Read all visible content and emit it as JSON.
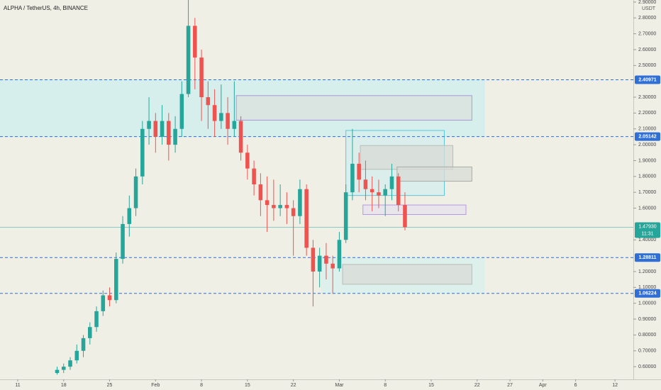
{
  "chart_data": {
    "type": "candlestick",
    "title": "ALPHA / TetherUS, 4h, BINANCE",
    "currency": "USDT",
    "up_color": "#26a69a",
    "down_color": "#ef5350",
    "x": [
      17,
      18,
      19,
      20,
      21,
      22,
      23,
      24,
      25,
      26,
      27,
      28,
      29,
      30,
      31,
      32,
      33,
      34,
      35,
      36,
      37,
      38,
      39,
      40,
      41,
      42,
      43,
      44,
      45,
      46,
      47,
      48,
      49,
      50,
      51,
      52,
      53,
      54,
      55,
      56,
      57,
      58,
      59,
      60,
      61,
      62,
      63,
      64,
      65,
      66,
      67,
      68,
      69,
      70
    ],
    "open": [
      0.56,
      0.58,
      0.6,
      0.64,
      0.7,
      0.78,
      0.85,
      0.95,
      1.05,
      1.02,
      1.28,
      1.5,
      1.6,
      1.8,
      2.1,
      2.15,
      2.05,
      2.15,
      2.0,
      2.1,
      2.32,
      2.75,
      2.55,
      2.3,
      2.25,
      2.15,
      2.2,
      2.1,
      2.15,
      1.95,
      1.85,
      1.75,
      1.65,
      1.62,
      1.6,
      1.62,
      1.6,
      1.55,
      1.72,
      1.35,
      1.2,
      1.3,
      1.25,
      1.22,
      1.4,
      1.7,
      1.88,
      1.78,
      1.72,
      1.7,
      1.68,
      1.72,
      1.8,
      1.62
    ],
    "high": [
      0.6,
      0.62,
      0.66,
      0.74,
      0.8,
      0.88,
      0.98,
      1.08,
      1.1,
      1.32,
      1.55,
      1.68,
      1.85,
      2.15,
      2.3,
      2.2,
      2.25,
      2.2,
      2.18,
      2.4,
      2.92,
      2.8,
      2.6,
      2.4,
      2.35,
      2.38,
      2.3,
      2.4,
      2.18,
      2.0,
      1.9,
      1.82,
      1.8,
      1.78,
      1.75,
      1.7,
      1.65,
      1.78,
      1.75,
      1.4,
      1.35,
      1.38,
      1.3,
      1.45,
      1.75,
      2.1,
      1.95,
      1.9,
      1.8,
      1.78,
      1.75,
      1.88,
      1.82,
      1.7
    ],
    "low": [
      0.55,
      0.56,
      0.58,
      0.62,
      0.66,
      0.74,
      0.82,
      0.92,
      0.98,
      1.0,
      1.25,
      1.42,
      1.55,
      1.75,
      2.0,
      1.95,
      2.0,
      1.9,
      1.95,
      2.05,
      2.3,
      2.35,
      2.15,
      2.1,
      2.05,
      2.1,
      2.0,
      2.05,
      1.9,
      1.78,
      1.68,
      1.55,
      1.45,
      1.52,
      1.55,
      1.5,
      1.3,
      1.5,
      1.3,
      0.98,
      1.1,
      1.15,
      1.06,
      1.2,
      1.38,
      1.65,
      1.7,
      1.65,
      1.58,
      1.6,
      1.55,
      1.65,
      1.58,
      1.46
    ],
    "close": [
      0.58,
      0.6,
      0.64,
      0.7,
      0.78,
      0.85,
      0.95,
      1.05,
      1.02,
      1.28,
      1.5,
      1.6,
      1.8,
      2.1,
      2.15,
      2.05,
      2.15,
      2.0,
      2.1,
      2.32,
      2.75,
      2.55,
      2.3,
      2.25,
      2.15,
      2.2,
      2.1,
      2.15,
      1.95,
      1.85,
      1.75,
      1.65,
      1.62,
      1.6,
      1.62,
      1.6,
      1.55,
      1.72,
      1.35,
      1.2,
      1.3,
      1.25,
      1.22,
      1.4,
      1.7,
      1.88,
      1.78,
      1.72,
      1.7,
      1.68,
      1.72,
      1.8,
      1.62,
      1.48
    ],
    "xlim": [
      8.3,
      104.8
    ],
    "ylim": [
      0.52,
      2.913
    ],
    "xticks": [
      11,
      18,
      25,
      {
        "value": 32,
        "label": "Feb"
      },
      {
        "value": 39,
        "label": "8"
      },
      {
        "value": 46,
        "label": "15"
      },
      {
        "value": 53,
        "label": "22"
      },
      {
        "value": 60,
        "label": "Mar"
      },
      {
        "value": 67,
        "label": "8"
      },
      {
        "value": 74,
        "label": "15"
      },
      {
        "value": 81,
        "label": "22"
      },
      {
        "value": 86,
        "label": "27"
      },
      {
        "value": 91,
        "label": "Apr"
      },
      {
        "value": 96,
        "label": "6"
      },
      {
        "value": 102,
        "label": "12"
      }
    ],
    "yticks": [
      {
        "value": 2.9,
        "label": "2.90000"
      },
      {
        "value": 2.8,
        "label": "2.80000"
      },
      {
        "value": 2.7,
        "label": "2.70000"
      },
      {
        "value": 2.6,
        "label": "2.60000"
      },
      {
        "value": 2.5,
        "label": "2.50000"
      },
      {
        "value": 2.3,
        "label": "2.30000"
      },
      {
        "value": 2.2,
        "label": "2.20000"
      },
      {
        "value": 2.1,
        "label": "2.10000"
      },
      {
        "value": 2.0,
        "label": "2.00000"
      },
      {
        "value": 1.9,
        "label": "1.90000"
      },
      {
        "value": 1.8,
        "label": "1.80000"
      },
      {
        "value": 1.7,
        "label": "1.70000"
      },
      {
        "value": 1.6,
        "label": "1.60000"
      },
      {
        "value": 1.4,
        "label": "1.40000"
      },
      {
        "value": 1.2,
        "label": "1.20000"
      },
      {
        "value": 1.1,
        "label": "1.10000"
      },
      {
        "value": 1.0,
        "label": "1.00000"
      },
      {
        "value": 0.9,
        "label": "0.90000"
      },
      {
        "value": 0.8,
        "label": "0.80000"
      },
      {
        "value": 0.7,
        "label": "0.70000"
      },
      {
        "value": 0.6,
        "label": "0.60000"
      }
    ],
    "grid": false,
    "levels": [
      {
        "value": 2.40971,
        "label": "2.40971"
      },
      {
        "value": 2.05142,
        "label": "2.05142"
      },
      {
        "value": 1.28811,
        "label": "1.28811"
      },
      {
        "value": 1.06224,
        "label": "1.06224"
      }
    ],
    "level_color": "#2f6fd6",
    "last_price": {
      "value": 1.4793,
      "label": "1.47930",
      "countdown": "11:31",
      "color": "#26a69a"
    },
    "zones": [
      {
        "x0": 8.3,
        "x1": 82.1,
        "y0": 2.05142,
        "y1": 2.40971,
        "fill": "#cdeeee",
        "stroke": "#cdeeee"
      },
      {
        "x0": 44.3,
        "x1": 80.2,
        "y0": 2.155,
        "y1": 2.31,
        "fill": "#dbe0dc",
        "stroke": "#a99ad8"
      },
      {
        "x0": 61,
        "x1": 76,
        "y0": 1.68,
        "y1": 2.09,
        "fill": "#d6eeec",
        "stroke": "#5cc8d8"
      },
      {
        "x0": 63.2,
        "x1": 77.3,
        "y0": 1.845,
        "y1": 1.995,
        "fill": "#d8dbd6",
        "stroke": "#b8bcb6"
      },
      {
        "x0": 68.8,
        "x1": 80.2,
        "y0": 1.77,
        "y1": 1.86,
        "fill": "#d8dbd6",
        "stroke": "#a8aca6"
      },
      {
        "x0": 63.6,
        "x1": 79.3,
        "y0": 1.56,
        "y1": 1.62,
        "fill": "#e6e3ee",
        "stroke": "#b49ae0"
      },
      {
        "x0": 57.3,
        "x1": 82.1,
        "y0": 1.06224,
        "y1": 1.28811,
        "fill": "#d8f0ee",
        "stroke": "#d8f0ee"
      },
      {
        "x0": 60.5,
        "x1": 80.2,
        "y0": 1.12,
        "y1": 1.245,
        "fill": "#d8dbd6",
        "stroke": "#b8bcb6"
      }
    ]
  }
}
